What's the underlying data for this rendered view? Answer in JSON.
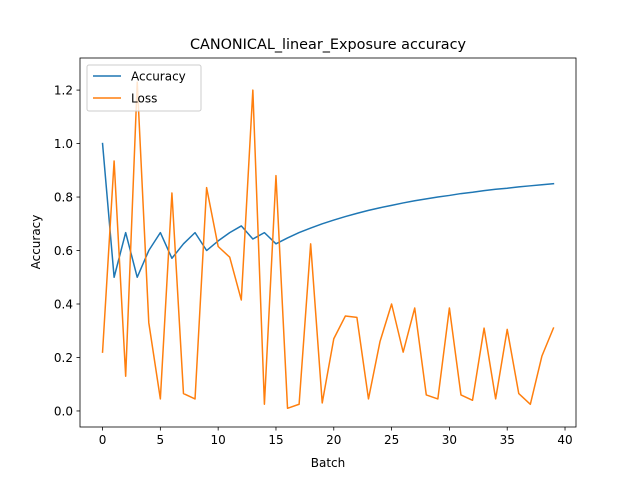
{
  "chart_data": {
    "type": "line",
    "title": "CANONICAL_linear_Exposure accuracy",
    "xlabel": "Batch",
    "ylabel": "Accuracy",
    "xlim": [
      -1.95,
      40.95
    ],
    "ylim": [
      -0.06,
      1.32
    ],
    "xticks": [
      0,
      5,
      10,
      15,
      20,
      25,
      30,
      35,
      40
    ],
    "yticks": [
      0.0,
      0.2,
      0.4,
      0.6,
      0.8,
      1.0,
      1.2
    ],
    "ytick_labels": [
      "0.0",
      "0.2",
      "0.4",
      "0.6",
      "0.8",
      "1.0",
      "1.2"
    ],
    "grid": false,
    "legend_position": "upper-left",
    "x": [
      0,
      1,
      2,
      3,
      4,
      5,
      6,
      7,
      8,
      9,
      10,
      11,
      12,
      13,
      14,
      15,
      16,
      17,
      18,
      19,
      20,
      21,
      22,
      23,
      24,
      25,
      26,
      27,
      28,
      29,
      30,
      31,
      32,
      33,
      34,
      35,
      36,
      37,
      38,
      39
    ],
    "series": [
      {
        "name": "Accuracy",
        "color": "#1f77b4",
        "values": [
          1.0,
          0.5,
          0.667,
          0.5,
          0.6,
          0.667,
          0.571,
          0.625,
          0.667,
          0.6,
          0.636,
          0.667,
          0.692,
          0.643,
          0.667,
          0.625,
          0.647,
          0.667,
          0.684,
          0.7,
          0.714,
          0.727,
          0.739,
          0.75,
          0.76,
          0.769,
          0.778,
          0.786,
          0.793,
          0.8,
          0.806,
          0.813,
          0.818,
          0.824,
          0.829,
          0.833,
          0.838,
          0.842,
          0.846,
          0.85
        ]
      },
      {
        "name": "Loss",
        "color": "#ff7f0e",
        "values": [
          0.22,
          0.935,
          0.13,
          1.23,
          0.33,
          0.045,
          0.815,
          0.065,
          0.045,
          0.835,
          0.615,
          0.575,
          0.415,
          1.2,
          0.025,
          0.88,
          0.01,
          0.025,
          0.625,
          0.03,
          0.27,
          0.355,
          0.35,
          0.045,
          0.26,
          0.4,
          0.22,
          0.385,
          0.06,
          0.045,
          0.385,
          0.06,
          0.04,
          0.31,
          0.045,
          0.305,
          0.065,
          0.025,
          0.205,
          0.31
        ]
      }
    ]
  }
}
